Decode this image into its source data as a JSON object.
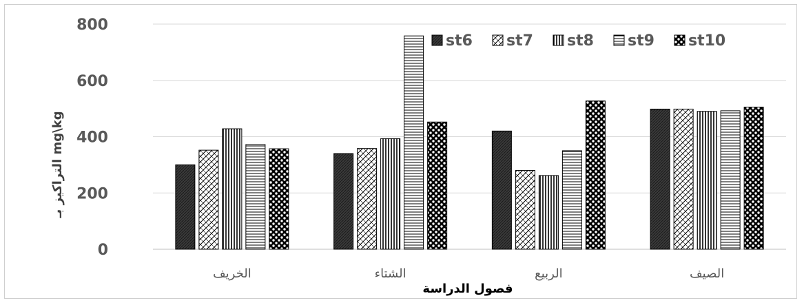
{
  "chart_data": {
    "type": "bar",
    "categories": [
      "الخريف",
      "الشتاء",
      "الربيع",
      "الصيف"
    ],
    "series": [
      {
        "name": "st6",
        "pattern": "dark",
        "values": [
          300,
          340,
          420,
          498
        ]
      },
      {
        "name": "st7",
        "pattern": "diag-cross",
        "values": [
          352,
          358,
          280,
          498
        ]
      },
      {
        "name": "st8",
        "pattern": "vertical",
        "values": [
          428,
          393,
          262,
          490
        ]
      },
      {
        "name": "st9",
        "pattern": "horizontal",
        "values": [
          372,
          758,
          350,
          492
        ]
      },
      {
        "name": "st10",
        "pattern": "dots",
        "values": [
          357,
          452,
          527,
          505
        ]
      }
    ],
    "xlabel": "فصول الدراسة",
    "ylabel": "التراكيز بـ mg\\kg",
    "ylim": [
      0,
      800
    ],
    "yticks": [
      0,
      200,
      400,
      600,
      800
    ],
    "grid": true,
    "legend_position": "top-right",
    "colors": {
      "bar_fill": "#ffffff",
      "bar_stroke": "#000000",
      "dark_fill": "#3a3a3a",
      "gridline": "#d9d9d9",
      "axis_text": "#595959",
      "ylabel_text": "#404040"
    }
  }
}
